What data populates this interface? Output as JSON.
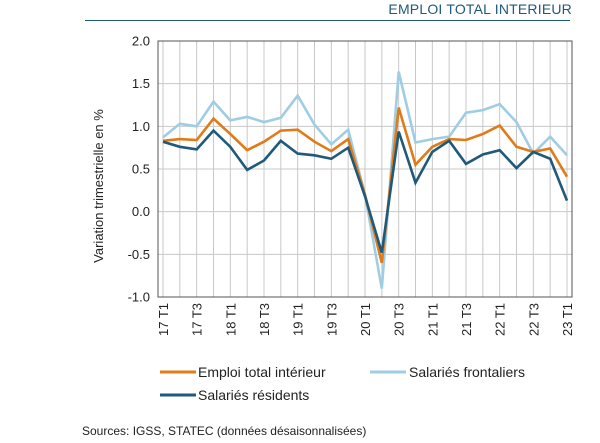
{
  "header": {
    "title": "EMPLOI TOTAL INTERIEUR"
  },
  "source": "Sources: IGSS, STATEC (données désaisonnalisées)",
  "chart_data": {
    "type": "line",
    "ylabel": "Variation trimestrielle en %",
    "xlabel": "",
    "ylim": [
      -1.0,
      2.0
    ],
    "yticks": [
      2.0,
      1.5,
      1.0,
      0.5,
      0.0,
      -0.5,
      -1.0
    ],
    "ytick_labels": [
      "2.0",
      "1.5",
      "1.0",
      "0.5",
      "0.0",
      "-0.5",
      "-1.0"
    ],
    "grid": true,
    "legend_position": "bottom",
    "categories": [
      "17 T1",
      "17 T2",
      "17 T3",
      "17 T4",
      "18 T1",
      "18 T2",
      "18 T3",
      "18 T4",
      "19 T1",
      "19 T2",
      "19 T3",
      "19 T4",
      "20 T1",
      "20 T2",
      "20 T3",
      "20 T4",
      "21 T1",
      "21 T2",
      "21 T3",
      "21 T4",
      "22 T1",
      "22 T2",
      "22 T3",
      "22 T4",
      "23 T1"
    ],
    "tick_labels": [
      "17 T1",
      "17 T3",
      "18 T1",
      "18 T3",
      "19 T1",
      "19 T3",
      "20 T1",
      "20 T3",
      "21 T1",
      "21 T3",
      "22 T1",
      "22 T3",
      "23 T1"
    ],
    "series": [
      {
        "name": "Emploi total intérieur",
        "color": "#e07b1a",
        "values": [
          0.83,
          0.85,
          0.84,
          1.09,
          0.91,
          0.72,
          0.82,
          0.95,
          0.96,
          0.82,
          0.71,
          0.85,
          0.2,
          -0.6,
          1.22,
          0.55,
          0.76,
          0.85,
          0.84,
          0.91,
          1.01,
          0.76,
          0.7,
          0.74,
          0.41
        ]
      },
      {
        "name": "Salariés frontaliers",
        "color": "#9fcde3",
        "values": [
          0.87,
          1.03,
          1.0,
          1.29,
          1.07,
          1.11,
          1.05,
          1.1,
          1.36,
          1.02,
          0.79,
          0.96,
          0.2,
          -0.9,
          1.64,
          0.81,
          0.85,
          0.88,
          1.16,
          1.19,
          1.26,
          1.05,
          0.68,
          0.88,
          0.66
        ]
      },
      {
        "name": "Salariés résidents",
        "color": "#1f5a7a",
        "values": [
          0.82,
          0.76,
          0.73,
          0.95,
          0.76,
          0.49,
          0.6,
          0.83,
          0.68,
          0.66,
          0.62,
          0.75,
          0.18,
          -0.48,
          0.94,
          0.34,
          0.7,
          0.83,
          0.56,
          0.67,
          0.72,
          0.51,
          0.7,
          0.62,
          0.13
        ]
      }
    ]
  }
}
